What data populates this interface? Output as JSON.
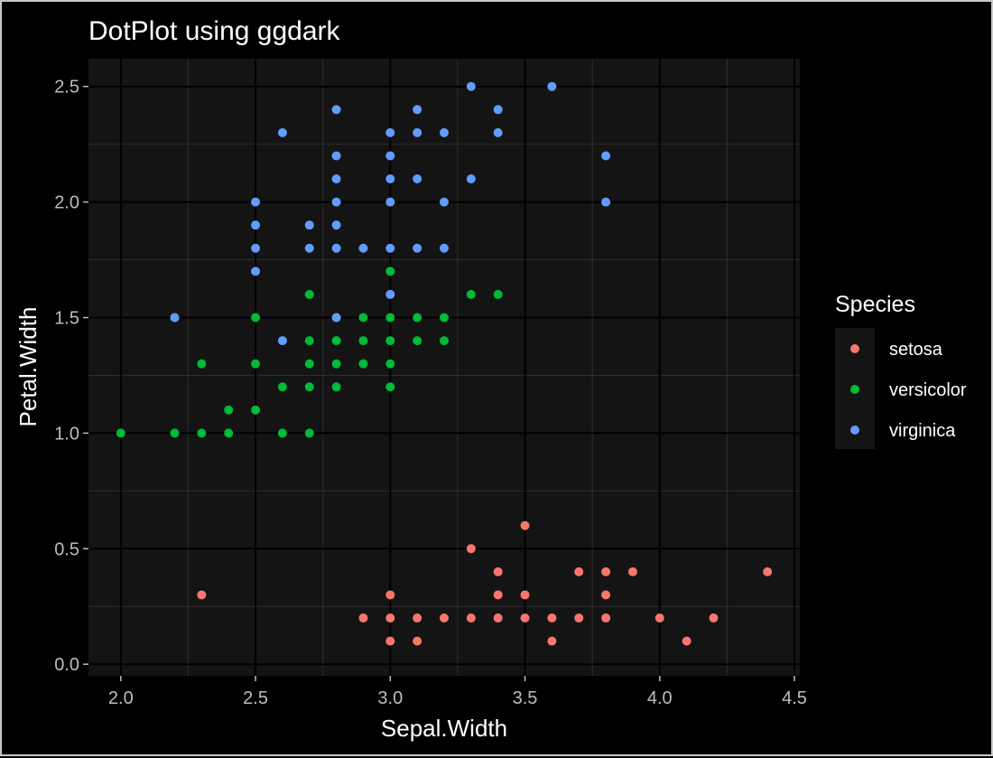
{
  "chart_data": {
    "type": "scatter",
    "title": "DotPlot using ggdark",
    "xlabel": "Sepal.Width",
    "ylabel": "Petal.Width",
    "xlim": [
      1.88,
      4.52
    ],
    "ylim": [
      -0.05,
      2.62
    ],
    "x_ticks": [
      2.0,
      2.5,
      3.0,
      3.5,
      4.0,
      4.5
    ],
    "y_ticks": [
      0.0,
      0.5,
      1.0,
      1.5,
      2.0,
      2.5
    ],
    "x_tick_labels": [
      "2.0",
      "2.5",
      "3.0",
      "3.5",
      "4.0",
      "4.5"
    ],
    "y_tick_labels": [
      "0.0",
      "0.5",
      "1.0",
      "1.5",
      "2.0",
      "2.5"
    ],
    "grid": true,
    "legend": {
      "title": "Species",
      "position": "right",
      "entries": [
        "setosa",
        "versicolor",
        "virginica"
      ]
    },
    "colors": {
      "background": "#000000",
      "panel": "#141414",
      "grid_major": "#000000",
      "grid_minor": "#2e2e2e",
      "setosa": "#F8766D",
      "versicolor": "#00BA38",
      "virginica": "#619CFF"
    },
    "series": [
      {
        "name": "setosa",
        "points": [
          [
            2.3,
            0.3
          ],
          [
            2.9,
            0.2
          ],
          [
            3.0,
            0.3
          ],
          [
            3.0,
            0.2
          ],
          [
            3.0,
            0.1
          ],
          [
            3.1,
            0.2
          ],
          [
            3.1,
            0.1
          ],
          [
            3.2,
            0.2
          ],
          [
            3.3,
            0.5
          ],
          [
            3.3,
            0.2
          ],
          [
            3.4,
            0.4
          ],
          [
            3.4,
            0.3
          ],
          [
            3.4,
            0.2
          ],
          [
            3.5,
            0.6
          ],
          [
            3.5,
            0.3
          ],
          [
            3.5,
            0.2
          ],
          [
            3.6,
            0.2
          ],
          [
            3.6,
            0.1
          ],
          [
            3.7,
            0.4
          ],
          [
            3.7,
            0.2
          ],
          [
            3.8,
            0.4
          ],
          [
            3.8,
            0.3
          ],
          [
            3.8,
            0.2
          ],
          [
            3.9,
            0.4
          ],
          [
            4.0,
            0.2
          ],
          [
            4.1,
            0.1
          ],
          [
            4.2,
            0.2
          ],
          [
            4.4,
            0.4
          ]
        ]
      },
      {
        "name": "versicolor",
        "points": [
          [
            2.0,
            1.0
          ],
          [
            2.2,
            1.0
          ],
          [
            2.2,
            1.5
          ],
          [
            2.3,
            1.0
          ],
          [
            2.3,
            1.3
          ],
          [
            2.4,
            1.0
          ],
          [
            2.4,
            1.1
          ],
          [
            2.5,
            1.1
          ],
          [
            2.5,
            1.3
          ],
          [
            2.5,
            1.5
          ],
          [
            2.6,
            1.0
          ],
          [
            2.6,
            1.2
          ],
          [
            2.7,
            1.0
          ],
          [
            2.7,
            1.2
          ],
          [
            2.7,
            1.3
          ],
          [
            2.7,
            1.4
          ],
          [
            2.7,
            1.6
          ],
          [
            2.8,
            1.2
          ],
          [
            2.8,
            1.3
          ],
          [
            2.8,
            1.4
          ],
          [
            2.8,
            1.5
          ],
          [
            2.9,
            1.3
          ],
          [
            2.9,
            1.4
          ],
          [
            2.9,
            1.5
          ],
          [
            3.0,
            1.2
          ],
          [
            3.0,
            1.3
          ],
          [
            3.0,
            1.4
          ],
          [
            3.0,
            1.5
          ],
          [
            3.0,
            1.7
          ],
          [
            3.1,
            1.4
          ],
          [
            3.1,
            1.5
          ],
          [
            3.2,
            1.4
          ],
          [
            3.2,
            1.5
          ],
          [
            3.3,
            1.6
          ],
          [
            3.4,
            1.6
          ]
        ]
      },
      {
        "name": "virginica",
        "points": [
          [
            2.2,
            1.5
          ],
          [
            2.5,
            1.7
          ],
          [
            2.5,
            1.8
          ],
          [
            2.5,
            1.9
          ],
          [
            2.5,
            2.0
          ],
          [
            2.6,
            1.4
          ],
          [
            2.6,
            2.3
          ],
          [
            2.7,
            1.8
          ],
          [
            2.7,
            1.9
          ],
          [
            2.8,
            1.5
          ],
          [
            2.8,
            1.8
          ],
          [
            2.8,
            1.9
          ],
          [
            2.8,
            2.0
          ],
          [
            2.8,
            2.1
          ],
          [
            2.8,
            2.2
          ],
          [
            2.8,
            2.4
          ],
          [
            2.9,
            1.8
          ],
          [
            3.0,
            1.6
          ],
          [
            3.0,
            1.8
          ],
          [
            3.0,
            2.0
          ],
          [
            3.0,
            2.1
          ],
          [
            3.0,
            2.2
          ],
          [
            3.0,
            2.3
          ],
          [
            3.1,
            1.8
          ],
          [
            3.1,
            2.1
          ],
          [
            3.1,
            2.3
          ],
          [
            3.1,
            2.4
          ],
          [
            3.2,
            1.8
          ],
          [
            3.2,
            2.0
          ],
          [
            3.2,
            2.3
          ],
          [
            3.3,
            2.1
          ],
          [
            3.3,
            2.5
          ],
          [
            3.4,
            2.3
          ],
          [
            3.4,
            2.4
          ],
          [
            3.6,
            2.5
          ],
          [
            3.8,
            2.0
          ],
          [
            3.8,
            2.2
          ]
        ]
      }
    ]
  }
}
